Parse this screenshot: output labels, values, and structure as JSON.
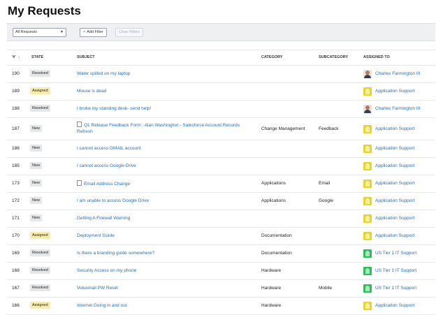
{
  "page": {
    "title": "My Requests"
  },
  "filters": {
    "select_value": "All Requests",
    "add_filter_label": "Add Filter",
    "clear_filters_label": "Clear Filters"
  },
  "table": {
    "headers": {
      "id": "'#'",
      "state": "STATE",
      "subject": "SUBJECT",
      "category": "CATEGORY",
      "subcategory": "SUBCATEGORY",
      "assigned": "ASSIGNED TO"
    },
    "sort_indicator": "↓",
    "rows": [
      {
        "id": "190",
        "state": "Resolved",
        "subject": "Water spilled on my laptop",
        "doc_icon": false,
        "category": "",
        "subcategory": "",
        "assigned": "Charles Farmington III",
        "assignee_type": "person"
      },
      {
        "id": "189",
        "state": "Assigned",
        "subject": "Mouse is dead",
        "doc_icon": false,
        "category": "",
        "subcategory": "",
        "assigned": "Application Support",
        "assignee_type": "group-yellow"
      },
      {
        "id": "188",
        "state": "Resolved",
        "subject": "I broke my standing desk- send help!",
        "doc_icon": false,
        "category": "",
        "subcategory": "",
        "assigned": "Charles Farmington III",
        "assignee_type": "person"
      },
      {
        "id": "187",
        "state": "New",
        "subject": "Q1 Release Feedback Form : Alan Washington - Salesforce Account Records Refresh",
        "doc_icon": true,
        "category": "Change Management",
        "subcategory": "Feedback",
        "assigned": "Application Support",
        "assignee_type": "group-yellow"
      },
      {
        "id": "186",
        "state": "New",
        "subject": "I cannot access GMAIL account",
        "doc_icon": false,
        "category": "",
        "subcategory": "",
        "assigned": "Application Support",
        "assignee_type": "group-yellow"
      },
      {
        "id": "185",
        "state": "New",
        "subject": "I cannot access Google Drive",
        "doc_icon": false,
        "category": "",
        "subcategory": "",
        "assigned": "Application Support",
        "assignee_type": "group-yellow"
      },
      {
        "id": "173",
        "state": "New",
        "subject": "Email Address Change",
        "doc_icon": true,
        "category": "Applications",
        "subcategory": "Email",
        "assigned": "Application Support",
        "assignee_type": "group-yellow"
      },
      {
        "id": "172",
        "state": "New",
        "subject": "I am unable to access Google Drive",
        "doc_icon": false,
        "category": "Applications",
        "subcategory": "Google",
        "assigned": "Application Support",
        "assignee_type": "group-yellow"
      },
      {
        "id": "171",
        "state": "New",
        "subject": "Getting A Firewall Warning",
        "doc_icon": false,
        "category": "",
        "subcategory": "",
        "assigned": "Application Support",
        "assignee_type": "group-yellow"
      },
      {
        "id": "170",
        "state": "Assigned",
        "subject": "Deployment Guide",
        "doc_icon": false,
        "category": "Documentation",
        "subcategory": "",
        "assigned": "Application Support",
        "assignee_type": "group-yellow"
      },
      {
        "id": "169",
        "state": "Resolved",
        "subject": "Is there a branding guide somewhere?",
        "doc_icon": false,
        "category": "Documentation",
        "subcategory": "",
        "assigned": "US Tier 1 IT Support",
        "assignee_type": "group-green"
      },
      {
        "id": "168",
        "state": "Resolved",
        "subject": "Security Access on my phone",
        "doc_icon": false,
        "category": "Hardware",
        "subcategory": "",
        "assigned": "US Tier 1 IT Support",
        "assignee_type": "group-green"
      },
      {
        "id": "167",
        "state": "Resolved",
        "subject": "Voicemail PW Reset",
        "doc_icon": false,
        "category": "Hardware",
        "subcategory": "Mobile",
        "assigned": "US Tier 1 IT Support",
        "assignee_type": "group-green"
      },
      {
        "id": "166",
        "state": "Assigned",
        "subject": "Internet Going in and out",
        "doc_icon": false,
        "category": "Hardware",
        "subcategory": "",
        "assigned": "Application Support",
        "assignee_type": "group-yellow"
      }
    ]
  }
}
